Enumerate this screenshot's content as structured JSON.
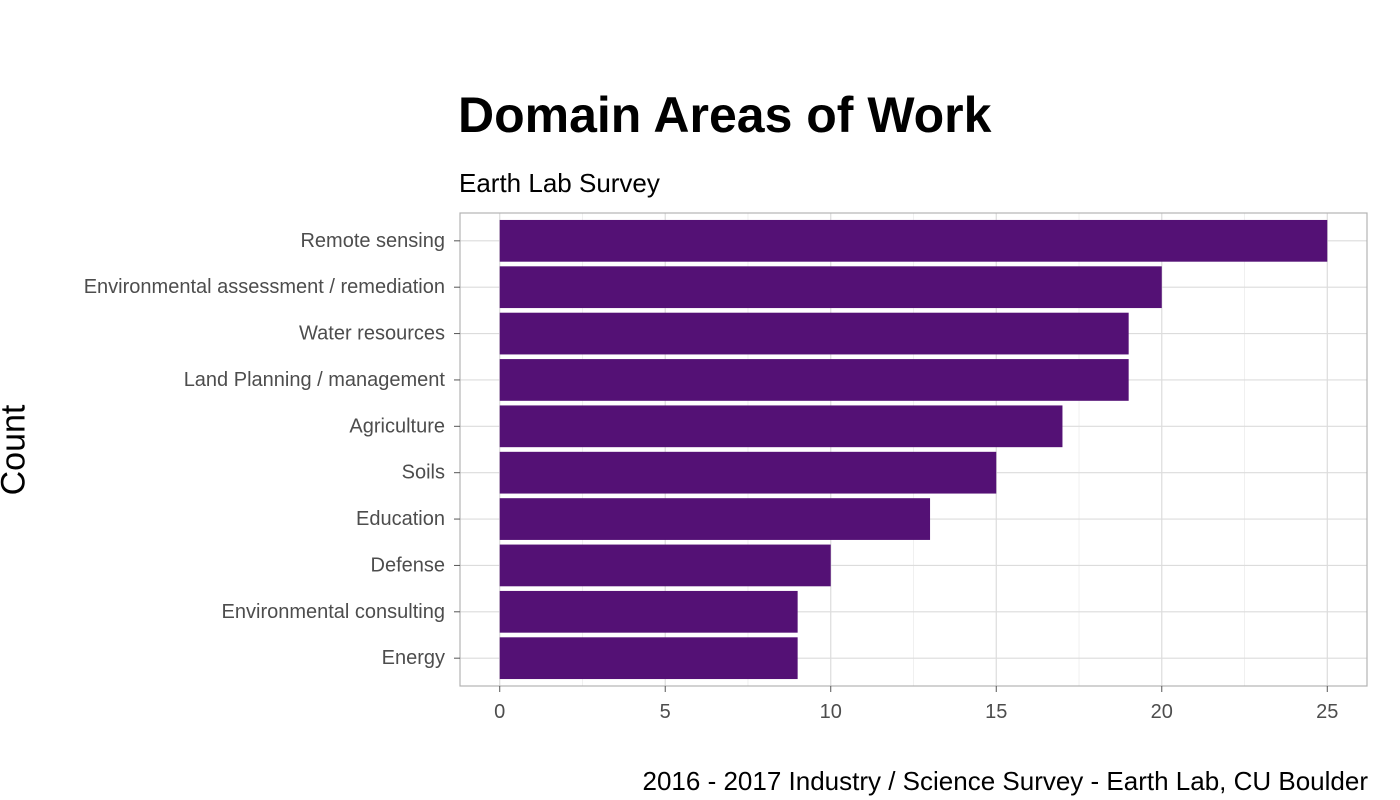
{
  "chart_data": {
    "type": "bar",
    "orientation": "horizontal",
    "title": "Domain Areas of Work",
    "subtitle": "Earth Lab Survey",
    "ylabel": "Count",
    "caption": "2016 - 2017 Industry / Science Survey - Earth Lab, CU Boulder",
    "categories": [
      "Remote sensing",
      "Environmental assessment / remediation",
      "Water resources",
      "Land Planning / management",
      "Agriculture",
      "Soils",
      "Education",
      "Defense",
      "Environmental consulting",
      "Energy"
    ],
    "values": [
      25,
      20,
      19,
      19,
      17,
      15,
      13,
      10,
      9,
      9
    ],
    "x_ticks": [
      0,
      5,
      10,
      15,
      20,
      25
    ],
    "xlim": [
      -1.2,
      26.2
    ],
    "grid": true,
    "bar_color": "#541175"
  }
}
